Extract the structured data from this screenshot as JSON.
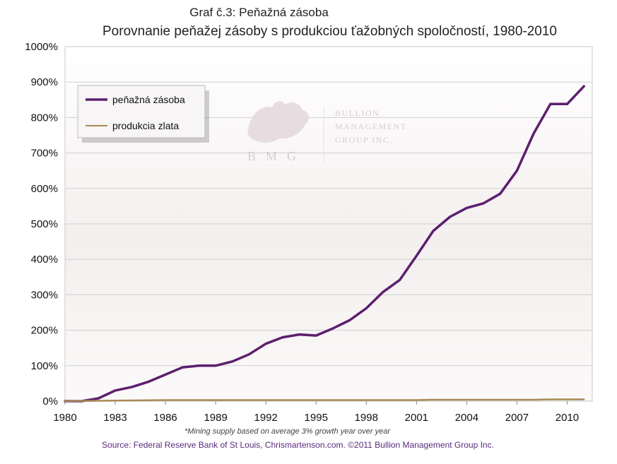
{
  "header": {
    "title": "Graf č.3: Peňažná zásoba",
    "subtitle": "Porovnanie peňažej zásoby s produkciou ťažobných spoločností, 1980-2010"
  },
  "footer": {
    "note": "*Mining supply based on average 3% growth year over year",
    "source": "Source: Federal Reserve Bank of St Louis, Chrismartenson.com. ©2011 Bullion Management Group Inc."
  },
  "watermark": {
    "initials": "BMG",
    "line1": "BULLION",
    "line2": "MANAGEMENT",
    "line3": "GROUP INC."
  },
  "chart_data": {
    "type": "line",
    "xlim": [
      1980,
      2011.5
    ],
    "ylim": [
      0,
      1000
    ],
    "x_ticks": [
      1980,
      1983,
      1986,
      1989,
      1992,
      1995,
      1998,
      2001,
      2004,
      2007,
      2010
    ],
    "y_ticks": [
      0,
      100,
      200,
      300,
      400,
      500,
      600,
      700,
      800,
      900,
      1000
    ],
    "y_tick_labels": [
      "0%",
      "100%",
      "200%",
      "300%",
      "400%",
      "500%",
      "600%",
      "700%",
      "800%",
      "900%",
      "1000%"
    ],
    "grid": true,
    "legend_position": "top-left",
    "series": [
      {
        "name": "peňažná zásoba",
        "color": "#5c1f6e",
        "x": [
          1980,
          1981,
          1982,
          1983,
          1984,
          1985,
          1986,
          1987,
          1988,
          1989,
          1990,
          1991,
          1992,
          1993,
          1994,
          1995,
          1996,
          1997,
          1998,
          1999,
          2000,
          2001,
          2002,
          2003,
          2004,
          2005,
          2006,
          2007,
          2008,
          2009,
          2010,
          2011
        ],
        "values": [
          0,
          0,
          8,
          30,
          40,
          55,
          75,
          95,
          100,
          100,
          112,
          132,
          162,
          180,
          188,
          185,
          205,
          228,
          262,
          308,
          342,
          410,
          480,
          520,
          545,
          558,
          585,
          650,
          755,
          838,
          838,
          888
        ]
      },
      {
        "name": "produkcia zlata",
        "color": "#a88a55",
        "x": [
          1980,
          1981,
          1982,
          1983,
          1984,
          1985,
          1986,
          1987,
          1988,
          1989,
          1990,
          1991,
          1992,
          1993,
          1994,
          1995,
          1996,
          1997,
          1998,
          1999,
          2000,
          2001,
          2002,
          2003,
          2004,
          2005,
          2006,
          2007,
          2008,
          2009,
          2010,
          2011
        ],
        "values": [
          0,
          0.5,
          1,
          1.5,
          2,
          2.5,
          3,
          3,
          3,
          3,
          3,
          3,
          3,
          3,
          3,
          3,
          3,
          3,
          3,
          3,
          3,
          3,
          4,
          4,
          4,
          4,
          4,
          4,
          4,
          5,
          5,
          5
        ]
      }
    ]
  }
}
